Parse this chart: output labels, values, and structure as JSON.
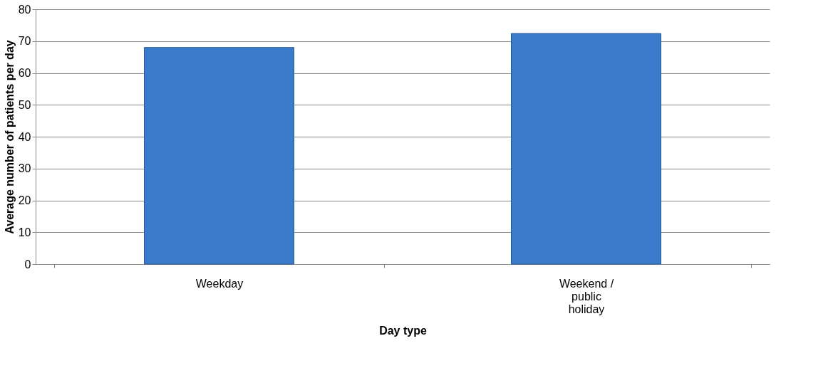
{
  "chart_data": {
    "type": "bar",
    "xlabel": "Day type",
    "ylabel": "Average number of patients per day",
    "categories": [
      "Weekday",
      "Weekend / public holiday"
    ],
    "values": [
      68,
      72.4
    ],
    "color": "#3b7bcb",
    "ylim": [
      0,
      80
    ],
    "yticks": [
      0,
      10,
      20,
      30,
      40,
      50,
      60,
      70,
      80
    ],
    "grid": "y"
  }
}
